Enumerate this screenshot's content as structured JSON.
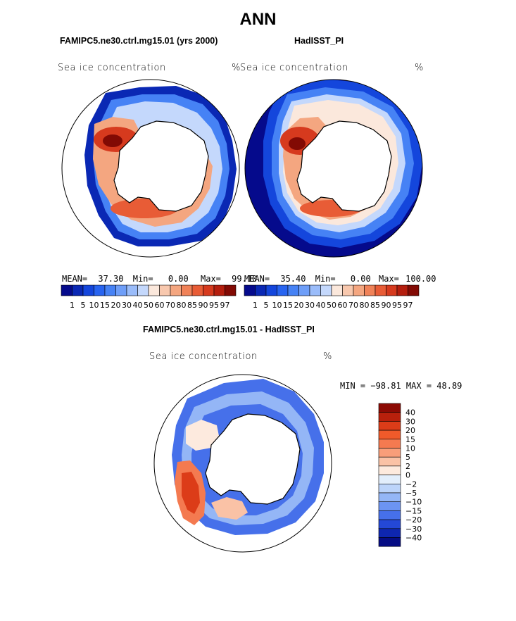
{
  "page_title": "ANN",
  "panels": [
    {
      "id": "model",
      "header": "FAMIPC5.ne30.ctrl.mg15.01 (yrs 2000)",
      "variable": "Sea ice concentration",
      "units": "%",
      "stats": {
        "mean_label": "MEAN=",
        "mean": "37.30",
        "min_label": "Min=",
        "min": "0.00",
        "max_label": "Max=",
        "max": "99.10"
      }
    },
    {
      "id": "obs",
      "header": "HadISST_PI",
      "variable": "Sea ice concentration",
      "units": "%",
      "stats": {
        "mean_label": "MEAN=",
        "mean": "35.40",
        "min_label": "Min=",
        "min": "0.00",
        "max_label": "Max=",
        "max": "100.00"
      }
    }
  ],
  "abs_colorbar": {
    "labels": [
      "1",
      "5",
      "10",
      "15",
      "20",
      "30",
      "40",
      "50",
      "60",
      "70",
      "80",
      "85",
      "90",
      "95",
      "97"
    ],
    "colors": [
      "#050a8c",
      "#0a28b4",
      "#1446dc",
      "#2864f0",
      "#4682f5",
      "#6e9ef8",
      "#9abcfa",
      "#c4d8fc",
      "#fbe8dc",
      "#f8c8ae",
      "#f4a680",
      "#f08258",
      "#e85c36",
      "#d63a1e",
      "#b41e0e",
      "#820a04"
    ]
  },
  "diff_panel": {
    "header": "FAMIPC5.ne30.ctrl.mg15.01 - HadISST_PI",
    "variable": "Sea ice concentration",
    "units": "%",
    "minmax_text": "MIN = −98.81  MAX =  48.89",
    "colorbar_labels": [
      "40",
      "30",
      "20",
      "15",
      "10",
      "5",
      "2",
      "0",
      "−2",
      "−5",
      "−10",
      "−15",
      "−20",
      "−30",
      "−40"
    ],
    "colorbar_colors": [
      "#8c0a04",
      "#b8200c",
      "#dc3c18",
      "#f05a2a",
      "#f47a50",
      "#f89e7a",
      "#fac2a6",
      "#fdeade",
      "#e2eefc",
      "#bcd4fa",
      "#94b6f6",
      "#6c94f2",
      "#4670ea",
      "#2448d6",
      "#0e26b0",
      "#050c84"
    ]
  },
  "chart_data": [
    {
      "type": "heatmap",
      "title": "FAMIPC5.ne30.ctrl.mg15.01 (yrs 2000)",
      "variable": "Sea ice concentration",
      "units": "%",
      "projection": "south polar stereographic",
      "mean": 37.3,
      "min": 0.0,
      "max": 99.1,
      "levels": [
        1,
        5,
        10,
        15,
        20,
        30,
        40,
        50,
        60,
        70,
        80,
        85,
        90,
        95,
        97
      ]
    },
    {
      "type": "heatmap",
      "title": "HadISST_PI",
      "variable": "Sea ice concentration",
      "units": "%",
      "projection": "south polar stereographic",
      "mean": 35.4,
      "min": 0.0,
      "max": 100.0,
      "levels": [
        1,
        5,
        10,
        15,
        20,
        30,
        40,
        50,
        60,
        70,
        80,
        85,
        90,
        95,
        97
      ]
    },
    {
      "type": "heatmap",
      "title": "FAMIPC5.ne30.ctrl.mg15.01 - HadISST_PI",
      "variable": "Sea ice concentration",
      "units": "%",
      "projection": "south polar stereographic",
      "min": -98.81,
      "max": 48.89,
      "levels": [
        40,
        30,
        20,
        15,
        10,
        5,
        2,
        0,
        -2,
        -5,
        -10,
        -15,
        -20,
        -30,
        -40
      ]
    }
  ]
}
